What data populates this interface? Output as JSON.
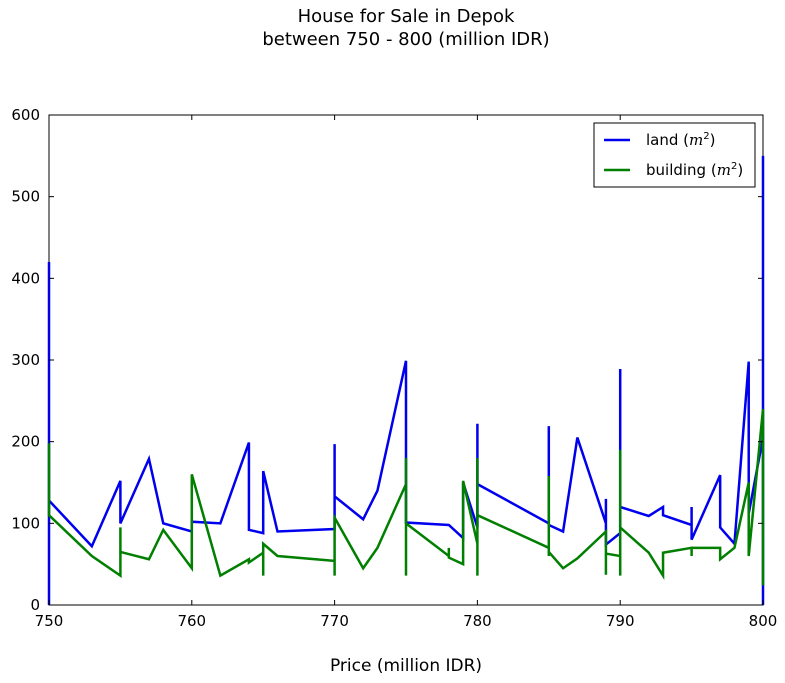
{
  "chart_data": {
    "type": "line",
    "title": "House for Sale in Depok",
    "subtitle": "between 750 - 800 (million IDR)",
    "xlabel": "Price (million IDR)",
    "ylabel": "",
    "xlim": [
      750,
      800
    ],
    "ylim": [
      0,
      600
    ],
    "xticks": [
      "750",
      "760",
      "770",
      "780",
      "790",
      "800"
    ],
    "yticks": [
      "0",
      "100",
      "200",
      "300",
      "400",
      "500",
      "600"
    ],
    "legend_position": "top-right",
    "grid": false,
    "series": [
      {
        "name": "land",
        "unit": "m",
        "unit_exp": "2",
        "color": "#0000ee",
        "points": [
          [
            750,
            0
          ],
          [
            750,
            420
          ],
          [
            750,
            128
          ],
          [
            753,
            72
          ],
          [
            755,
            152
          ],
          [
            755,
            100
          ],
          [
            757,
            179
          ],
          [
            758,
            100
          ],
          [
            760,
            90
          ],
          [
            760,
            102
          ],
          [
            762,
            100
          ],
          [
            764,
            199
          ],
          [
            764,
            92
          ],
          [
            765,
            88
          ],
          [
            765,
            164
          ],
          [
            766,
            90
          ],
          [
            770,
            93
          ],
          [
            770,
            197
          ],
          [
            770,
            133
          ],
          [
            772,
            105
          ],
          [
            773,
            140
          ],
          [
            775,
            299
          ],
          [
            775,
            101
          ],
          [
            778,
            98
          ],
          [
            779,
            82
          ],
          [
            779,
            150
          ],
          [
            780,
            95
          ],
          [
            780,
            222
          ],
          [
            780,
            148
          ],
          [
            785,
            100
          ],
          [
            785,
            219
          ],
          [
            785,
            98
          ],
          [
            786,
            90
          ],
          [
            787,
            205
          ],
          [
            789,
            100
          ],
          [
            789,
            130
          ],
          [
            789,
            74
          ],
          [
            790,
            88
          ],
          [
            790,
            289
          ],
          [
            790,
            120
          ],
          [
            792,
            109
          ],
          [
            793,
            120
          ],
          [
            793,
            110
          ],
          [
            795,
            98
          ],
          [
            795,
            120
          ],
          [
            795,
            80
          ],
          [
            797,
            159
          ],
          [
            797,
            95
          ],
          [
            798,
            75
          ],
          [
            799,
            298
          ],
          [
            799,
            112
          ],
          [
            800,
            205
          ],
          [
            800,
            550
          ],
          [
            800,
            0
          ]
        ]
      },
      {
        "name": "building",
        "unit": "m",
        "unit_exp": "2",
        "color": "#007f00",
        "points": [
          [
            750,
            198
          ],
          [
            750,
            110
          ],
          [
            753,
            60
          ],
          [
            755,
            36
          ],
          [
            755,
            95
          ],
          [
            755,
            65
          ],
          [
            757,
            56
          ],
          [
            758,
            92
          ],
          [
            760,
            45
          ],
          [
            760,
            160
          ],
          [
            762,
            36
          ],
          [
            764,
            56
          ],
          [
            764,
            52
          ],
          [
            765,
            64
          ],
          [
            765,
            36
          ],
          [
            765,
            75
          ],
          [
            766,
            60
          ],
          [
            770,
            54
          ],
          [
            770,
            36
          ],
          [
            770,
            107
          ],
          [
            772,
            45
          ],
          [
            773,
            70
          ],
          [
            775,
            148
          ],
          [
            775,
            36
          ],
          [
            775,
            180
          ],
          [
            775,
            100
          ],
          [
            778,
            60
          ],
          [
            778,
            70
          ],
          [
            778,
            58
          ],
          [
            779,
            50
          ],
          [
            779,
            152
          ],
          [
            780,
            75
          ],
          [
            780,
            36
          ],
          [
            780,
            180
          ],
          [
            780,
            110
          ],
          [
            785,
            70
          ],
          [
            785,
            60
          ],
          [
            785,
            158
          ],
          [
            785,
            65
          ],
          [
            786,
            45
          ],
          [
            787,
            57
          ],
          [
            789,
            90
          ],
          [
            789,
            37
          ],
          [
            789,
            63
          ],
          [
            790,
            60
          ],
          [
            790,
            36
          ],
          [
            790,
            190
          ],
          [
            790,
            95
          ],
          [
            792,
            64
          ],
          [
            793,
            36
          ],
          [
            793,
            64
          ],
          [
            795,
            70
          ],
          [
            795,
            60
          ],
          [
            795,
            70
          ],
          [
            797,
            70
          ],
          [
            797,
            56
          ],
          [
            798,
            70
          ],
          [
            799,
            150
          ],
          [
            799,
            60
          ],
          [
            800,
            240
          ],
          [
            800,
            24
          ]
        ]
      }
    ]
  }
}
